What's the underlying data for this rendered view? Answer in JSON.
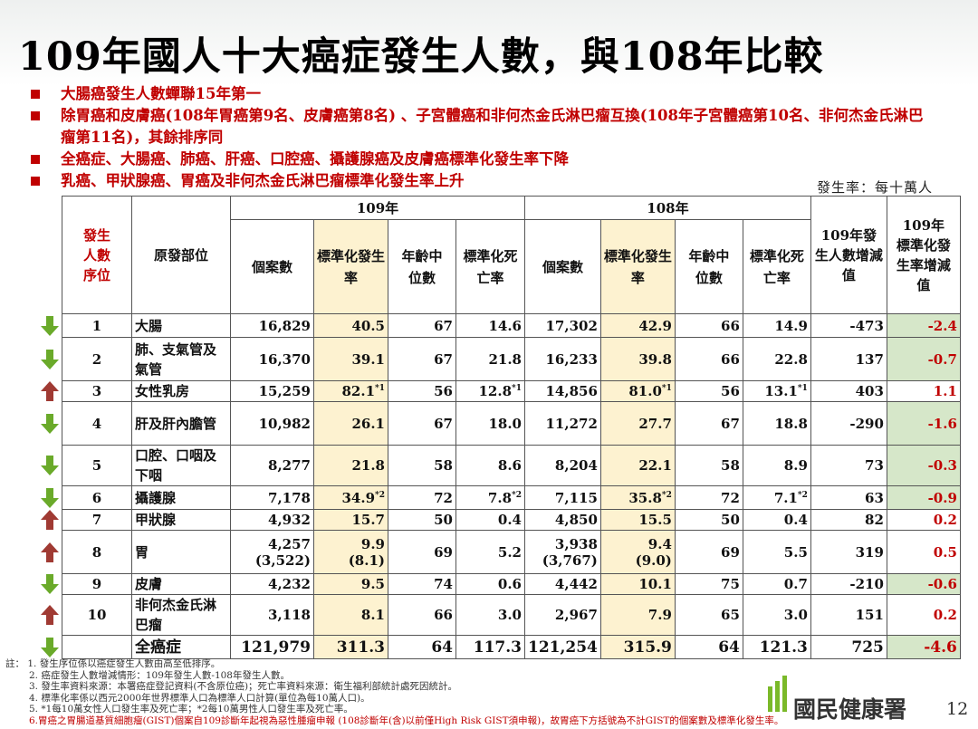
{
  "title": "109年國人十大癌症發生人數，與108年比較",
  "bullets": [
    "大腸癌發生人數蟬聯15年第一",
    "除胃癌和皮膚癌(108年胃癌第9名、皮膚癌第8名) 、子宮體癌和非何杰金氏淋巴瘤互換(108年子宮體癌第10名、非何杰金氏淋巴瘤第11名)，其餘排序同",
    "全癌症、大腸癌、肺癌、肝癌、口腔癌、攝護腺癌及皮膚癌標準化發生率下降",
    "乳癌、甲狀腺癌、胃癌及非何杰金氏淋巴瘤標準化發生率上升"
  ],
  "unit": "發生率：每十萬人",
  "table": {
    "year_a": "109年",
    "year_b": "108年",
    "h_rank": "發生人數序位",
    "h_site": "原發部位",
    "h_cases": "個案數",
    "h_asr": "標準化發生率",
    "h_age": "年齡中位數",
    "h_mort": "標準化死亡率",
    "h_diff": "109年發生人數增減值",
    "h_diff_rate": "109年標準化發生率增減值",
    "rows": [
      {
        "rank": "1",
        "site": "大腸",
        "c109": "16,829",
        "r109": "40.5",
        "a109": "67",
        "m109": "14.6",
        "c108": "17,302",
        "r108": "42.9",
        "a108": "66",
        "m108": "14.9",
        "diff": "-473",
        "drate": "-2.4",
        "dir": "down"
      },
      {
        "rank": "2",
        "site": "肺、支氣管及氣管",
        "c109": "16,370",
        "r109": "39.1",
        "a109": "67",
        "m109": "21.8",
        "c108": "16,233",
        "r108": "39.8",
        "a108": "66",
        "m108": "22.8",
        "diff": "137",
        "drate": "-0.7",
        "dir": "down"
      },
      {
        "rank": "3",
        "site": "女性乳房",
        "c109": "15,259",
        "r109": "82.1",
        "r109s": "*1",
        "a109": "56",
        "m109": "12.8",
        "m109s": "*1",
        "c108": "14,856",
        "r108": "81.0",
        "r108s": "*1",
        "a108": "56",
        "m108": "13.1",
        "m108s": "*1",
        "diff": "403",
        "drate": "1.1",
        "dir": "up"
      },
      {
        "rank": "4",
        "site": "肝及肝內膽管",
        "c109": "10,982",
        "r109": "26.1",
        "a109": "67",
        "m109": "18.0",
        "c108": "11,272",
        "r108": "27.7",
        "a108": "67",
        "m108": "18.8",
        "diff": "-290",
        "drate": "-1.6",
        "dir": "down"
      },
      {
        "rank": "5",
        "site": "口腔、口咽及下咽",
        "c109": "8,277",
        "r109": "21.8",
        "a109": "58",
        "m109": "8.6",
        "c108": "8,204",
        "r108": "22.1",
        "a108": "58",
        "m108": "8.9",
        "diff": "73",
        "drate": "-0.3",
        "dir": "down"
      },
      {
        "rank": "6",
        "site": "攝護腺",
        "c109": "7,178",
        "r109": "34.9",
        "r109s": "*2",
        "a109": "72",
        "m109": "7.8",
        "m109s": "*2",
        "c108": "7,115",
        "r108": "35.8",
        "r108s": "*2",
        "a108": "72",
        "m108": "7.1",
        "m108s": "*2",
        "diff": "63",
        "drate": "-0.9",
        "dir": "down"
      },
      {
        "rank": "7",
        "site": "甲狀腺",
        "c109": "4,932",
        "r109": "15.7",
        "a109": "50",
        "m109": "0.4",
        "c108": "4,850",
        "r108": "15.5",
        "a108": "50",
        "m108": "0.4",
        "diff": "82",
        "drate": "0.2",
        "dir": "up"
      },
      {
        "rank": "8",
        "site": "胃",
        "c109": "4,257",
        "c109b": "(3,522)",
        "r109": "9.9",
        "r109b": "(8.1)",
        "a109": "69",
        "m109": "5.2",
        "c108": "3,938",
        "c108b": "(3,767)",
        "r108": "9.4",
        "r108b": "(9.0)",
        "a108": "69",
        "m108": "5.5",
        "diff": "319",
        "drate": "0.5",
        "dir": "up"
      },
      {
        "rank": "9",
        "site": "皮膚",
        "c109": "4,232",
        "r109": "9.5",
        "a109": "74",
        "m109": "0.6",
        "c108": "4,442",
        "r108": "10.1",
        "a108": "75",
        "m108": "0.7",
        "diff": "-210",
        "drate": "-0.6",
        "dir": "down"
      },
      {
        "rank": "10",
        "site": "非何杰金氏淋巴瘤",
        "c109": "3,118",
        "r109": "8.1",
        "a109": "66",
        "m109": "3.0",
        "c108": "2,967",
        "r108": "7.9",
        "a108": "65",
        "m108": "3.0",
        "diff": "151",
        "drate": "0.2",
        "dir": "up"
      },
      {
        "rank": "",
        "site": "全癌症",
        "c109": "121,979",
        "r109": "311.3",
        "a109": "64",
        "m109": "117.3",
        "c108": "121,254",
        "r108": "315.9",
        "a108": "64",
        "m108": "121.3",
        "diff": "725",
        "drate": "-4.6",
        "dir": "down"
      }
    ]
  },
  "notes": {
    "prefix": "註：",
    "lines": [
      "1. 發生序位係以癌症發生人數由高至低排序。",
      "2. 癌症發生人數增減情形：109年發生人數-108年發生人數。",
      "3. 發生率資料來源：本署癌症登記資料(不含原位癌)；死亡率資料來源：衛生福利部統計處死因統計。",
      "4. 標準化率係以西元2000年世界標準人口為標準人口計算(單位為每10萬人口)。",
      "5. *1每10萬女性人口發生率及死亡率；*2每10萬男性人口發生率及死亡率。",
      "6.胃癌之胃腸道基質細胞瘤(GIST)個案自109診斷年起視為惡性腫瘤申報 (108診斷年(含)以前僅High Risk GIST須申報)，故胃癌下方括號為不計GIST的個案數及標準化發生率。"
    ]
  },
  "footer": {
    "logo_text": "國民健康署",
    "page_number": "12"
  },
  "colors": {
    "red": "#c00000",
    "green_arrow": "#6aaa2a",
    "red_arrow": "#a03a33",
    "highlight": "#fdf2d0",
    "green_cell": "#d6e7c9"
  }
}
